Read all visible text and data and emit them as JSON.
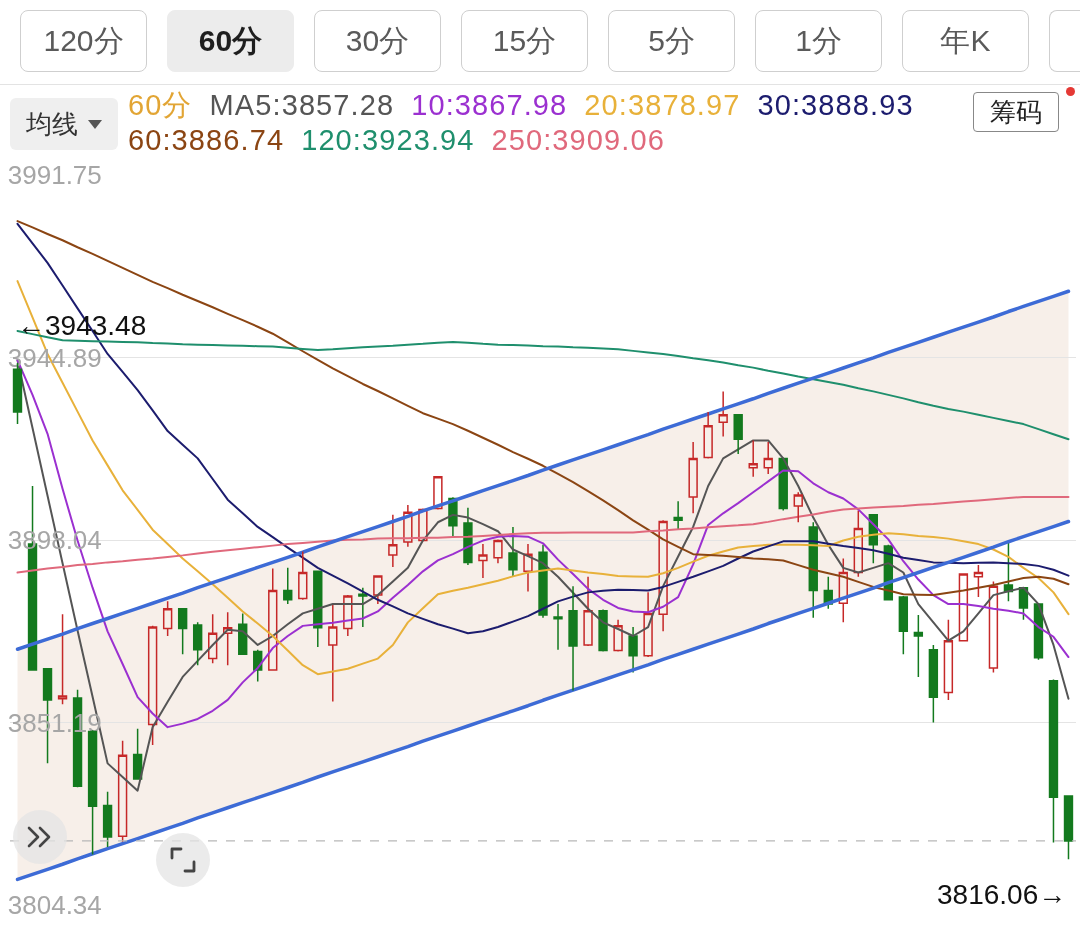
{
  "chart_data": {
    "type": "candlestick",
    "categories": [
      null,
      null,
      null,
      null,
      null,
      null,
      null,
      null,
      null,
      null,
      null,
      null,
      null,
      null,
      null,
      null,
      null,
      null,
      null,
      null,
      null,
      null,
      null,
      null,
      null,
      null,
      null,
      null,
      null,
      null,
      null,
      null,
      null,
      null,
      null,
      null,
      null,
      null,
      null,
      null,
      null,
      null,
      null,
      null,
      null,
      null,
      null,
      null,
      null,
      null,
      null,
      null,
      null,
      null,
      null,
      null,
      null,
      null,
      null,
      null,
      null,
      null,
      null,
      null,
      null,
      null,
      null,
      null,
      null,
      null,
      null
    ],
    "ohlc": [
      [
        3941.9,
        3943.48,
        3927.8,
        3930.9
      ],
      [
        3897.0,
        3911.9,
        3864.5,
        3864.7
      ],
      [
        3865.0,
        3865.2,
        3840.7,
        3857.0
      ],
      [
        3857.3,
        3879.0,
        3855.9,
        3858.0
      ],
      [
        3857.5,
        3859.6,
        3834.6,
        3834.8
      ],
      [
        3848.9,
        3849.2,
        3817.3,
        3829.7
      ],
      [
        3829.9,
        3833.4,
        3819.2,
        3821.8
      ],
      [
        3822.0,
        3846.5,
        3820.4,
        3842.8
      ],
      [
        3843.0,
        3849.6,
        3836.5,
        3836.7
      ],
      [
        3850.7,
        3876.0,
        3845.4,
        3875.7
      ],
      [
        3875.3,
        3882.3,
        3873.4,
        3880.4
      ],
      [
        3880.4,
        3880.6,
        3868.7,
        3875.3
      ],
      [
        3876.2,
        3876.9,
        3865.9,
        3869.9
      ],
      [
        3867.6,
        3879.0,
        3866.4,
        3874.1
      ],
      [
        3874.1,
        3879.5,
        3865.9,
        3875.5
      ],
      [
        3876.4,
        3879.2,
        3868.5,
        3868.7
      ],
      [
        3869.4,
        3869.9,
        3861.7,
        3864.7
      ],
      [
        3864.7,
        3890.7,
        3864.5,
        3885.1
      ],
      [
        3885.1,
        3890.9,
        3881.6,
        3882.7
      ],
      [
        3883.0,
        3895.1,
        3882.7,
        3889.7
      ],
      [
        3890.0,
        3890.2,
        3870.6,
        3875.5
      ],
      [
        3871.1,
        3881.6,
        3856.6,
        3875.7
      ],
      [
        3875.3,
        3883.9,
        3873.4,
        3883.7
      ],
      [
        3884.1,
        3885.8,
        3875.7,
        3883.7
      ],
      [
        3883.9,
        3889.0,
        3881.6,
        3888.8
      ],
      [
        3894.2,
        3904.5,
        3891.1,
        3896.8
      ],
      [
        3897.5,
        3907.0,
        3896.3,
        3905.2
      ],
      [
        3897.9,
        3906.1,
        3897.7,
        3905.9
      ],
      [
        3906.1,
        3914.5,
        3905.9,
        3914.3
      ],
      [
        3908.7,
        3909.0,
        3898.6,
        3901.7
      ],
      [
        3902.4,
        3906.3,
        3891.6,
        3892.3
      ],
      [
        3892.8,
        3897.0,
        3888.3,
        3894.2
      ],
      [
        3893.5,
        3898.2,
        3892.1,
        3897.9
      ],
      [
        3894.7,
        3901.4,
        3888.8,
        3890.4
      ],
      [
        3890.0,
        3897.0,
        3884.8,
        3894.4
      ],
      [
        3894.9,
        3896.8,
        3878.1,
        3878.8
      ],
      [
        3878.3,
        3881.6,
        3869.9,
        3877.8
      ],
      [
        3879.9,
        3886.2,
        3859.4,
        3870.8
      ],
      [
        3871.1,
        3888.6,
        3870.8,
        3879.9
      ],
      [
        3879.9,
        3880.2,
        3869.4,
        3869.7
      ],
      [
        3869.7,
        3877.6,
        3869.4,
        3876.0
      ],
      [
        3873.4,
        3875.7,
        3864.0,
        3868.3
      ],
      [
        3868.3,
        3884.6,
        3868.0,
        3879.2
      ],
      [
        3879.0,
        3903.1,
        3874.6,
        3902.8
      ],
      [
        3903.8,
        3908.0,
        3901.0,
        3903.1
      ],
      [
        3909.1,
        3923.2,
        3904.9,
        3919.0
      ],
      [
        3919.2,
        3930.9,
        3919.0,
        3927.4
      ],
      [
        3928.3,
        3936.2,
        3924.6,
        3930.2
      ],
      [
        3930.2,
        3930.4,
        3920.1,
        3923.9
      ],
      [
        3916.6,
        3923.6,
        3914.3,
        3917.6
      ],
      [
        3916.6,
        3923.2,
        3915.0,
        3919.0
      ],
      [
        3919.0,
        3919.2,
        3905.6,
        3906.1
      ],
      [
        3906.8,
        3910.3,
        3902.6,
        3909.6
      ],
      [
        3901.4,
        3902.6,
        3878.1,
        3885.1
      ],
      [
        3885.1,
        3888.6,
        3880.4,
        3881.6
      ],
      [
        3881.8,
        3893.3,
        3876.9,
        3889.7
      ],
      [
        3889.7,
        3905.6,
        3888.6,
        3901.0
      ],
      [
        3904.5,
        3904.7,
        3892.1,
        3896.8
      ],
      [
        3896.5,
        3896.8,
        3882.5,
        3882.7
      ],
      [
        3883.4,
        3883.7,
        3868.7,
        3874.6
      ],
      [
        3874.3,
        3878.8,
        3862.9,
        3873.4
      ],
      [
        3869.9,
        3871.1,
        3851.2,
        3857.7
      ],
      [
        3858.9,
        3877.6,
        3857.0,
        3872.2
      ],
      [
        3872.2,
        3889.5,
        3872.0,
        3889.3
      ],
      [
        3888.6,
        3891.6,
        3883.4,
        3889.7
      ],
      [
        3865.2,
        3887.4,
        3864.0,
        3886.2
      ],
      [
        3886.5,
        3897.5,
        3882.3,
        3884.8
      ],
      [
        3885.8,
        3886.0,
        3877.6,
        3880.6
      ],
      [
        3881.6,
        3881.8,
        3867.3,
        3867.8
      ],
      [
        3861.9,
        3862.2,
        3820.4,
        3832.0
      ],
      [
        3832.3,
        3832.5,
        3816.06,
        3820.8
      ]
    ],
    "colors": [
      "#137a1e",
      "#137a1e",
      "#137a1e",
      "#c62828",
      "#137a1e",
      "#137a1e",
      "#137a1e",
      "#c62828",
      "#137a1e",
      "#c62828",
      "#c62828",
      "#137a1e",
      "#137a1e",
      "#c62828",
      "#c62828",
      "#137a1e",
      "#137a1e",
      "#c62828",
      "#137a1e",
      "#c62828",
      "#137a1e",
      "#c62828",
      "#c62828",
      "#137a1e",
      "#c62828",
      "#c62828",
      "#c62828",
      "#c62828",
      "#c62828",
      "#137a1e",
      "#137a1e",
      "#c62828",
      "#c62828",
      "#137a1e",
      "#c62828",
      "#137a1e",
      "#137a1e",
      "#137a1e",
      "#c62828",
      "#137a1e",
      "#c62828",
      "#137a1e",
      "#c62828",
      "#c62828",
      "#137a1e",
      "#c62828",
      "#c62828",
      "#c62828",
      "#137a1e",
      "#c62828",
      "#c62828",
      "#137a1e",
      "#c62828",
      "#137a1e",
      "#137a1e",
      "#c62828",
      "#c62828",
      "#137a1e",
      "#137a1e",
      "#137a1e",
      "#137a1e",
      "#137a1e",
      "#c62828",
      "#c62828",
      "#c62828",
      "#c62828",
      "#137a1e",
      "#137a1e",
      "#137a1e",
      "#137a1e",
      "#137a1e"
    ],
    "series": [
      {
        "type": "line",
        "name": "MA5:3857.28",
        "color": "#555555",
        "values": [
          3944.2,
          3926.8,
          3909.4,
          3892.1,
          3874.8,
          3857.8,
          3840.7,
          3837.2,
          3833.7,
          3850.0,
          3856.5,
          3862.9,
          3867.0,
          3871.1,
          3875.0,
          3874.6,
          3871.1,
          3873.4,
          3876.4,
          3879.2,
          3880.4,
          3881.6,
          3881.6,
          3881.6,
          3883.9,
          3887.4,
          3890.9,
          3897.9,
          3902.6,
          3904.5,
          3903.8,
          3902.1,
          3900.3,
          3895.6,
          3893.9,
          3892.1,
          3888.6,
          3884.5,
          3880.4,
          3876.9,
          3875.2,
          3873.4,
          3875.7,
          3886.2,
          3893.8,
          3901.4,
          3911.9,
          3919.0,
          3921.3,
          3923.6,
          3923.6,
          3919.0,
          3911.9,
          3903.8,
          3896.8,
          3890.9,
          3889.7,
          3890.9,
          3892.1,
          3889.7,
          3881.6,
          3876.9,
          3872.2,
          3874.6,
          3879.2,
          3883.9,
          3884.9,
          3885.8,
          3881.6,
          3871.1,
          3857.3
        ]
      },
      {
        "type": "line",
        "name": "10:3867.98",
        "color": "#9b30d0",
        "values": [
          3944.2,
          3935.3,
          3925.3,
          3911.2,
          3897.9,
          3885.8,
          3874.6,
          3866.2,
          3857.7,
          3853.5,
          3850.0,
          3850.9,
          3852.1,
          3854.2,
          3857.0,
          3861.5,
          3865.2,
          3870.3,
          3873.4,
          3876.0,
          3876.4,
          3876.8,
          3877.4,
          3877.9,
          3879.7,
          3883.2,
          3886.5,
          3890.0,
          3892.8,
          3894.4,
          3896.3,
          3897.9,
          3898.9,
          3899.1,
          3898.9,
          3897.2,
          3893.0,
          3889.3,
          3885.5,
          3882.7,
          3880.6,
          3879.7,
          3879.5,
          3880.9,
          3883.4,
          3891.8,
          3901.9,
          3904.9,
          3907.5,
          3910.3,
          3913.1,
          3915.9,
          3915.7,
          3912.6,
          3910.3,
          3908.7,
          3905.9,
          3902.1,
          3898.2,
          3892.6,
          3887.9,
          3883.9,
          3881.6,
          3881.6,
          3881.1,
          3880.4,
          3879.9,
          3879.2,
          3875.7,
          3873.2,
          3868.0
        ]
      },
      {
        "type": "line",
        "name": "20:3878.97",
        "color": "#e8b13a",
        "values": [
          3964.5,
          3955.2,
          3945.8,
          3938.4,
          3931.0,
          3923.6,
          3917.2,
          3910.8,
          3905.8,
          3900.7,
          3897.0,
          3893.3,
          3890.0,
          3886.7,
          3883.2,
          3879.7,
          3876.6,
          3873.4,
          3869.7,
          3865.9,
          3863.6,
          3864.3,
          3865.0,
          3866.3,
          3867.6,
          3871.1,
          3876.9,
          3880.5,
          3884.1,
          3885.0,
          3885.8,
          3886.7,
          3887.6,
          3888.7,
          3889.7,
          3890.2,
          3890.7,
          3890.2,
          3889.7,
          3889.3,
          3888.8,
          3888.7,
          3888.6,
          3889.5,
          3890.9,
          3892.5,
          3894.0,
          3895.1,
          3896.1,
          3896.5,
          3896.8,
          3896.8,
          3896.8,
          3896.7,
          3896.5,
          3897.9,
          3898.9,
          3899.4,
          3899.8,
          3899.5,
          3899.1,
          3898.8,
          3898.4,
          3897.7,
          3897.0,
          3895.6,
          3893.7,
          3890.9,
          3888.3,
          3884.6,
          3879.0
        ]
      },
      {
        "type": "line",
        "name": "30:3888.93",
        "color": "#1c1c6e",
        "values": [
          3979.2,
          3974.2,
          3969.2,
          3963.4,
          3957.5,
          3951.7,
          3945.8,
          3941.2,
          3936.5,
          3931.3,
          3926.0,
          3922.5,
          3919.0,
          3913.7,
          3908.4,
          3904.9,
          3901.4,
          3898.8,
          3896.1,
          3893.5,
          3890.9,
          3888.9,
          3886.9,
          3884.8,
          3882.7,
          3881.0,
          3879.2,
          3877.8,
          3876.4,
          3875.3,
          3874.1,
          3874.6,
          3875.7,
          3877.1,
          3878.5,
          3880.4,
          3882.3,
          3883.5,
          3884.6,
          3885.0,
          3885.3,
          3885.2,
          3885.1,
          3886.0,
          3887.3,
          3888.6,
          3890.0,
          3891.4,
          3893.3,
          3895.1,
          3896.4,
          3897.7,
          3897.7,
          3897.7,
          3897.1,
          3896.5,
          3896.0,
          3895.4,
          3894.5,
          3893.5,
          3892.9,
          3892.3,
          3892.2,
          3892.1,
          3892.2,
          3892.3,
          3892.1,
          3891.9,
          3891.4,
          3890.4,
          3888.9
        ]
      },
      {
        "type": "line",
        "name": "60:3886.74",
        "color": "#8b4513",
        "values": [
          3979.9,
          3978.3,
          3976.6,
          3975.0,
          3973.2,
          3971.5,
          3969.7,
          3967.9,
          3966.1,
          3964.3,
          3962.7,
          3961.0,
          3959.4,
          3957.8,
          3956.1,
          3954.5,
          3952.8,
          3951.0,
          3948.8,
          3946.5,
          3944.3,
          3942.1,
          3940.1,
          3938.1,
          3936.3,
          3934.4,
          3932.5,
          3930.6,
          3929.2,
          3927.8,
          3926.1,
          3924.3,
          3922.5,
          3920.6,
          3918.9,
          3917.1,
          3915.0,
          3912.9,
          3910.6,
          3908.2,
          3905.7,
          3903.1,
          3900.7,
          3898.2,
          3896.3,
          3894.4,
          3894.2,
          3894.0,
          3893.7,
          3893.3,
          3893.1,
          3892.8,
          3891.6,
          3890.4,
          3889.5,
          3888.6,
          3887.3,
          3886.0,
          3885.1,
          3884.1,
          3884.0,
          3883.9,
          3884.5,
          3885.1,
          3885.8,
          3886.5,
          3887.4,
          3888.3,
          3888.6,
          3888.1,
          3886.7
        ]
      },
      {
        "type": "line",
        "name": "120:3923.94",
        "color": "#1f8f6d",
        "values": [
          3951.7,
          3950.9,
          3950.1,
          3949.3,
          3949.2,
          3949.1,
          3949.0,
          3948.9,
          3948.8,
          3948.6,
          3948.5,
          3948.3,
          3948.2,
          3948.1,
          3948.0,
          3947.9,
          3947.8,
          3947.7,
          3947.4,
          3947.1,
          3946.8,
          3947.0,
          3947.3,
          3947.5,
          3947.7,
          3947.9,
          3948.2,
          3948.4,
          3948.7,
          3948.9,
          3948.7,
          3948.4,
          3948.2,
          3948.1,
          3948.0,
          3947.8,
          3947.7,
          3947.5,
          3947.4,
          3947.2,
          3947.0,
          3946.6,
          3946.2,
          3945.8,
          3945.3,
          3944.7,
          3944.2,
          3943.6,
          3942.9,
          3942.3,
          3941.5,
          3940.8,
          3940.0,
          3939.3,
          3938.6,
          3937.9,
          3937.0,
          3936.2,
          3935.3,
          3934.4,
          3933.4,
          3932.5,
          3931.7,
          3931.0,
          3930.2,
          3929.4,
          3928.6,
          3927.8,
          3926.5,
          3925.2,
          3923.9
        ]
      },
      {
        "type": "line",
        "name": "250:3909.06",
        "color": "#e0697c",
        "values": [
          3889.7,
          3890.2,
          3890.7,
          3891.1,
          3891.6,
          3891.9,
          3892.3,
          3892.6,
          3893.0,
          3893.3,
          3893.7,
          3894.1,
          3894.6,
          3895.0,
          3895.4,
          3895.8,
          3896.2,
          3896.6,
          3897.0,
          3897.3,
          3897.6,
          3897.9,
          3898.1,
          3898.2,
          3898.4,
          3898.5,
          3898.5,
          3898.6,
          3898.6,
          3898.8,
          3898.9,
          3899.1,
          3899.3,
          3899.6,
          3899.8,
          3899.9,
          3899.9,
          3900.0,
          3900.0,
          3900.0,
          3900.0,
          3900.0,
          3900.3,
          3900.5,
          3900.8,
          3901.0,
          3901.3,
          3901.6,
          3901.8,
          3902.1,
          3902.7,
          3903.4,
          3904.0,
          3904.6,
          3905.3,
          3905.9,
          3906.1,
          3906.4,
          3906.6,
          3906.8,
          3907.1,
          3907.3,
          3907.6,
          3907.9,
          3908.2,
          3908.5,
          3908.8,
          3909.1,
          3909.1,
          3909.1,
          3909.1
        ]
      },
      {
        "type": "line",
        "color": "#3d6bd6",
        "values": [
          3870.0,
          3871.3,
          3872.6,
          3873.9,
          3875.3,
          3876.6,
          3877.9,
          3879.2,
          3880.5,
          3881.8,
          3883.1,
          3884.4,
          3885.8,
          3887.1,
          3888.4,
          3889.7,
          3891.0,
          3892.3,
          3893.6,
          3894.9,
          3896.3,
          3897.6,
          3898.9,
          3900.2,
          3901.5,
          3902.8,
          3904.1,
          3905.5,
          3906.8,
          3908.1,
          3909.4,
          3910.7,
          3912.0,
          3913.3,
          3914.6,
          3916.0,
          3917.3,
          3918.6,
          3919.9,
          3921.2,
          3922.5,
          3923.8,
          3925.1,
          3926.5,
          3927.8,
          3929.1,
          3930.4,
          3931.7,
          3933.0,
          3934.3,
          3935.7,
          3937.0,
          3938.3,
          3939.6,
          3940.9,
          3942.2,
          3943.5,
          3944.8,
          3946.2,
          3947.5,
          3948.8,
          3950.1,
          3951.4,
          3952.7,
          3954.0,
          3955.3,
          3956.7,
          3958.0,
          3959.3,
          3960.6,
          3961.9
        ],
        "upper": [
          3870.0,
          3871.3,
          3872.6,
          3873.9,
          3875.3,
          3876.6,
          3877.9,
          3879.2,
          3880.5,
          3881.8,
          3883.1,
          3884.4,
          3885.8,
          3887.1,
          3888.4,
          3889.7,
          3891.0,
          3892.3,
          3893.6,
          3894.9,
          3896.3,
          3897.6,
          3898.9,
          3900.2,
          3901.5,
          3902.8,
          3904.1,
          3905.5,
          3906.8,
          3908.1,
          3909.4,
          3910.7,
          3912.0,
          3913.3,
          3914.6,
          3916.0,
          3917.3,
          3918.6,
          3919.9,
          3921.2,
          3922.5,
          3923.8,
          3925.1,
          3926.5,
          3927.8,
          3929.1,
          3930.4,
          3931.7,
          3933.0,
          3934.3,
          3935.7,
          3937.0,
          3938.3,
          3939.6,
          3940.9,
          3942.2,
          3943.5,
          3944.8,
          3946.2,
          3947.5,
          3948.8,
          3950.1,
          3951.4,
          3952.7,
          3954.0,
          3955.3,
          3956.7,
          3958.0,
          3959.3,
          3960.6,
          3961.9
        ],
        "lower": [
          3810.9,
          3812.2,
          3813.5,
          3814.8,
          3816.2,
          3817.5,
          3818.8,
          3820.1,
          3821.4,
          3822.7,
          3824.0,
          3825.3,
          3826.7,
          3828.0,
          3829.3,
          3830.6,
          3831.9,
          3833.2,
          3834.5,
          3835.8,
          3837.2,
          3838.5,
          3839.8,
          3841.1,
          3842.4,
          3843.7,
          3845.0,
          3846.4,
          3847.7,
          3849.0,
          3850.3,
          3851.6,
          3852.9,
          3854.2,
          3855.5,
          3856.9,
          3858.2,
          3859.5,
          3860.8,
          3862.1,
          3863.4,
          3864.7,
          3866.0,
          3867.4,
          3868.7,
          3870.0,
          3871.3,
          3872.6,
          3873.9,
          3875.2,
          3876.6,
          3877.9,
          3879.2,
          3880.5,
          3881.8,
          3883.1,
          3884.4,
          3885.7,
          3887.1,
          3888.4,
          3889.7,
          3891.0,
          3892.3,
          3893.6,
          3894.9,
          3896.2,
          3897.6,
          3898.9,
          3900.2,
          3901.5,
          3902.8
        ]
      },
      {
        "type": "line",
        "color": "#3d6bd6",
        "values": [
          3810.9,
          3812.2,
          3813.5,
          3814.8,
          3816.2,
          3817.5,
          3818.8,
          3820.1,
          3821.4,
          3822.7,
          3824.0,
          3825.3,
          3826.7,
          3828.0,
          3829.3,
          3830.6,
          3831.9,
          3833.2,
          3834.5,
          3835.8,
          3837.2,
          3838.5,
          3839.8,
          3841.1,
          3842.4,
          3843.7,
          3845.0,
          3846.4,
          3847.7,
          3849.0,
          3850.3,
          3851.6,
          3852.9,
          3854.2,
          3855.5,
          3856.9,
          3858.2,
          3859.5,
          3860.8,
          3862.1,
          3863.4,
          3864.7,
          3866.0,
          3867.4,
          3868.7,
          3870.0,
          3871.3,
          3872.6,
          3873.9,
          3875.2,
          3876.6,
          3877.9,
          3879.2,
          3880.5,
          3881.8,
          3883.1,
          3884.4,
          3885.7,
          3887.1,
          3888.4,
          3889.7,
          3891.0,
          3892.3,
          3893.6,
          3894.9,
          3896.2,
          3897.6,
          3898.9,
          3900.2,
          3901.5,
          3902.8
        ]
      }
    ],
    "ylim": [
      3804.34,
      3991.75
    ],
    "yticks": [
      3804.34,
      3851.19,
      3898.04,
      3944.89,
      3991.75
    ],
    "grid": "y",
    "tick_labels": "y",
    "legend": "top left",
    "legend_title": "60分",
    "ref_lines": [
      {
        "axis": "y",
        "value": 3820.8,
        "color": "#b8b8b8",
        "line_style": "dashed"
      }
    ],
    "annotations": [
      "120分",
      "60分",
      "30分",
      "15分",
      "5分",
      "1分",
      "年K",
      "均线",
      "筹码",
      "←3943.48",
      "3816.06→"
    ]
  }
}
